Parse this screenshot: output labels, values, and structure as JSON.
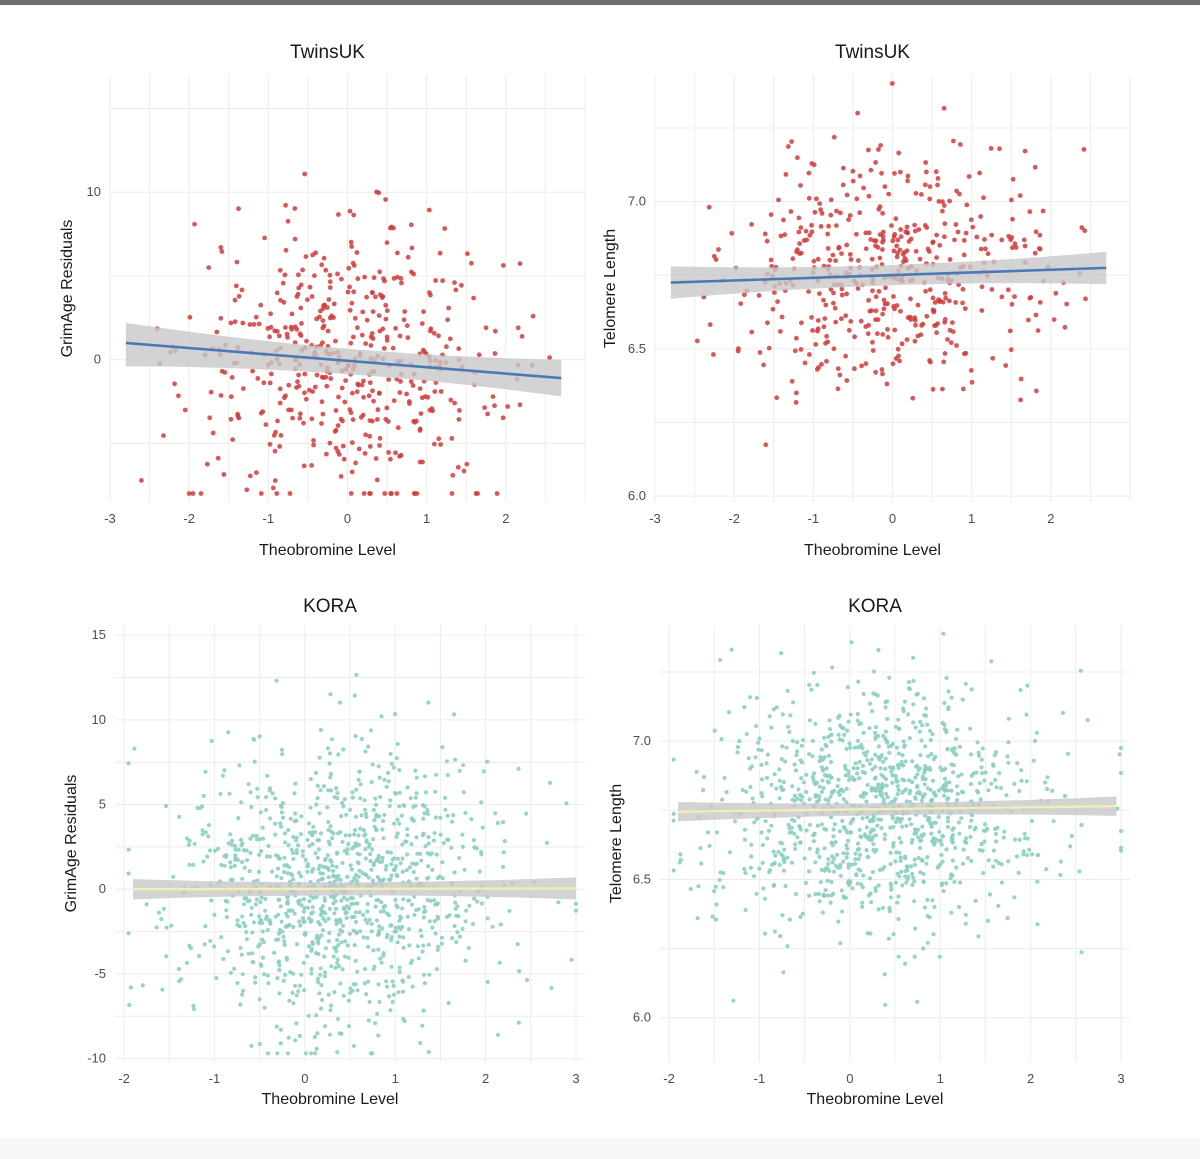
{
  "chart_data": [
    {
      "type": "scatter",
      "title": "TwinsUK",
      "xlabel": "Theobromine Level",
      "ylabel": "GrimAge Residuals",
      "xlim": [
        -3,
        3
      ],
      "ylim": [
        -8.5,
        17
      ],
      "xticks": [
        -3,
        -2,
        -1,
        0,
        1,
        2
      ],
      "yticks": [
        0,
        10
      ],
      "grid": true,
      "point_color": "#d03b3b",
      "line_color": "#4a7ab5",
      "band_color": "#c8c8c8",
      "n_points": 500,
      "fit": {
        "x": [
          -2.8,
          2.7
        ],
        "y": [
          1.0,
          -1.1
        ],
        "ci_start": [
          -0.4,
          2.2
        ],
        "ci_end": [
          -2.2,
          0.0
        ]
      },
      "spread": {
        "xsd": 1.0,
        "ysd": 4.0,
        "ymean": 0
      }
    },
    {
      "type": "scatter",
      "title": "TwinsUK",
      "xlabel": "Theobromine Level",
      "ylabel": "Telomere Length",
      "xlim": [
        -3,
        3
      ],
      "ylim": [
        5.98,
        7.43
      ],
      "xticks": [
        -3,
        -2,
        -1,
        0,
        1,
        2
      ],
      "yticks": [
        6.0,
        6.5,
        7.0
      ],
      "grid": true,
      "point_color": "#d03b3b",
      "line_color": "#4a7ab5",
      "band_color": "#c8c8c8",
      "n_points": 500,
      "fit": {
        "x": [
          -2.8,
          2.7
        ],
        "y": [
          6.725,
          6.775
        ],
        "ci_start": [
          6.67,
          6.78
        ],
        "ci_end": [
          6.72,
          6.83
        ]
      },
      "spread": {
        "xsd": 1.0,
        "ysd": 0.21,
        "ymean": 6.75
      }
    },
    {
      "type": "scatter",
      "title": "KORA",
      "xlabel": "Theobromine Level",
      "ylabel": "GrimAge Residuals",
      "xlim": [
        -2.1,
        3.1
      ],
      "ylim": [
        -10.2,
        15.6
      ],
      "xticks": [
        -2,
        -1,
        0,
        1,
        2,
        3
      ],
      "yticks": [
        -10,
        -5,
        0,
        5,
        10,
        15
      ],
      "grid": true,
      "point_color": "#8ccfc2",
      "line_color": "#f2efb4",
      "band_color": "#c8c8c8",
      "n_points": 1100,
      "fit": {
        "x": [
          -1.9,
          3.0
        ],
        "y": [
          0.0,
          0.05
        ],
        "ci_start": [
          -0.6,
          0.6
        ],
        "ci_end": [
          -0.6,
          0.7
        ]
      },
      "spread": {
        "xsd": 0.9,
        "ysd": 4.2,
        "ymean": 0
      }
    },
    {
      "type": "scatter",
      "title": "KORA",
      "xlabel": "Theobromine Level",
      "ylabel": "Telomere Length",
      "xlim": [
        -2.1,
        3.1
      ],
      "ylim": [
        5.84,
        7.42
      ],
      "xticks": [
        -2,
        -1,
        0,
        1,
        2,
        3
      ],
      "yticks": [
        6.0,
        6.5,
        7.0
      ],
      "grid": true,
      "point_color": "#8ccfc2",
      "line_color": "#f2efb4",
      "band_color": "#c8c8c8",
      "n_points": 1100,
      "fit": {
        "x": [
          -1.9,
          2.95
        ],
        "y": [
          6.745,
          6.765
        ],
        "ci_start": [
          6.71,
          6.78
        ],
        "ci_end": [
          6.73,
          6.8
        ]
      },
      "spread": {
        "xsd": 0.9,
        "ysd": 0.22,
        "ymean": 6.75
      }
    }
  ]
}
